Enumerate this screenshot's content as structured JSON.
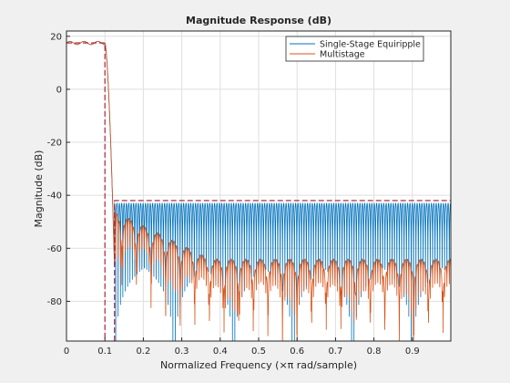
{
  "chart_data": {
    "type": "line",
    "title": "Magnitude Response (dB)",
    "xlabel": "Normalized Frequency (×π rad/sample)",
    "ylabel": "Magnitude (dB)",
    "xlim": [
      0,
      1
    ],
    "ylim": [
      -95,
      22
    ],
    "xticks": [
      0,
      0.1,
      0.2,
      0.3,
      0.4,
      0.5,
      0.6,
      0.7,
      0.8,
      0.9
    ],
    "xtick_labels": [
      "0",
      "0.1",
      "0.2",
      "0.3",
      "0.4",
      "0.5",
      "0.6",
      "0.7",
      "0.8",
      "0.9"
    ],
    "yticks": [
      20,
      0,
      -20,
      -40,
      -60,
      -80
    ],
    "ytick_labels": [
      "20",
      "0",
      "-20",
      "-40",
      "-60",
      "-80"
    ],
    "grid": true,
    "legend_position": "top-right",
    "colors": {
      "single": "#0072bd",
      "multi": "#d95319",
      "mask": "#a2142f"
    },
    "mask": {
      "passband_level_db": 17.5,
      "stopband_level_db": -42,
      "passband_edge": 0.1,
      "stopband_edge": 0.125
    },
    "series": [
      {
        "name": "Single-Stage Equiripple",
        "passband_level_db": 17.5,
        "passband_ripple_db": 0.6,
        "passband_edge": 0.1,
        "stopband_edge": 0.125,
        "stopband_peak_db": -43,
        "stopband_floor_db": -95,
        "null_spacing": 0.0062
      },
      {
        "name": "Multistage",
        "passband_level_db": 17.5,
        "passband_ripple_db": 0.6,
        "passband_edge": 0.1,
        "stopband_edge": 0.125,
        "stopband_peak_db": -42,
        "stopband_floor_db": -95,
        "lobe_spacing": 0.038,
        "null_spacing": 0.0062
      }
    ]
  }
}
